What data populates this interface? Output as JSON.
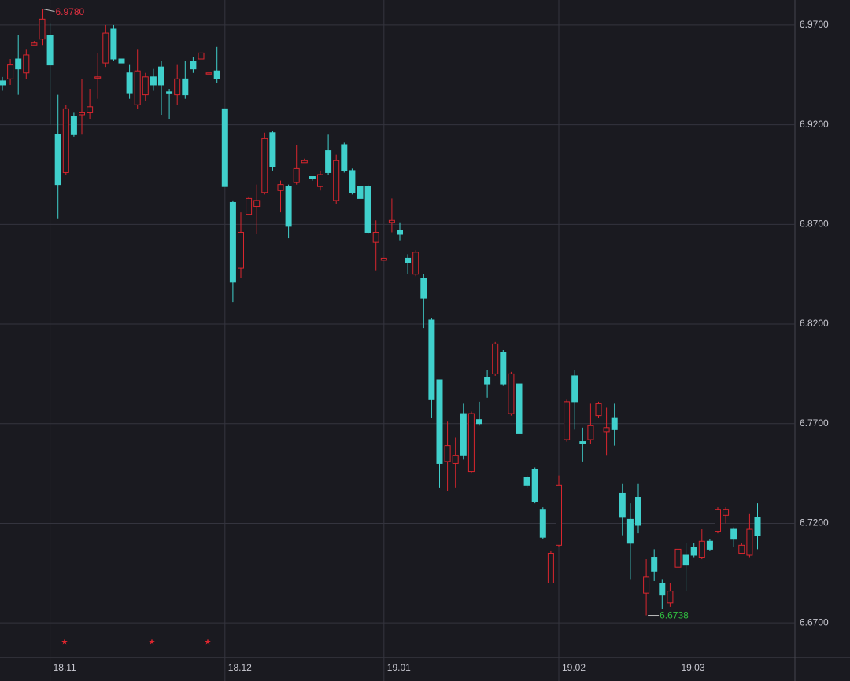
{
  "chart_data": {
    "type": "candlestick",
    "categories": [
      null,
      null,
      null,
      null,
      null,
      null,
      "18.11",
      null,
      null,
      null,
      null,
      null,
      null,
      null,
      null,
      null,
      null,
      null,
      null,
      null,
      null,
      null,
      null,
      null,
      null,
      null,
      null,
      null,
      "18.12",
      null,
      null,
      null,
      null,
      null,
      null,
      null,
      null,
      null,
      null,
      null,
      null,
      null,
      null,
      null,
      null,
      null,
      null,
      null,
      "19.01",
      null,
      null,
      null,
      null,
      null,
      null,
      null,
      null,
      null,
      null,
      null,
      null,
      null,
      null,
      null,
      null,
      null,
      null,
      null,
      null,
      null,
      "19.02",
      null,
      null,
      null,
      null,
      null,
      null,
      null,
      null,
      null,
      null,
      null,
      null,
      null,
      null,
      "19.03",
      null,
      null,
      null,
      null,
      null,
      null,
      null,
      null,
      null,
      null
    ],
    "open": [
      6.942,
      6.943,
      6.953,
      6.946,
      6.96,
      6.963,
      6.965,
      6.915,
      6.896,
      6.924,
      6.925,
      6.926,
      6.944,
      6.951,
      6.968,
      6.953,
      6.946,
      6.93,
      6.935,
      6.944,
      6.949,
      6.9365,
      6.935,
      6.943,
      6.952,
      6.953,
      6.9455,
      6.947,
      6.928,
      6.881,
      6.848,
      6.875,
      6.879,
      6.886,
      6.916,
      6.887,
      6.889,
      6.891,
      6.901,
      6.894,
      6.889,
      6.907,
      6.882,
      6.91,
      6.897,
      6.889,
      6.889,
      6.861,
      6.852,
      6.871,
      6.867,
      6.853,
      6.845,
      6.843,
      6.822,
      6.792,
      6.751,
      6.75,
      6.775,
      6.746,
      6.772,
      6.793,
      6.795,
      6.806,
      6.775,
      6.79,
      6.743,
      6.747,
      6.727,
      6.69,
      6.709,
      6.762,
      6.794,
      6.761,
      6.762,
      6.774,
      6.766,
      6.773,
      6.735,
      6.722,
      6.733,
      6.685,
      6.703,
      6.69,
      6.68,
      6.698,
      6.704,
      6.708,
      6.703,
      6.711,
      6.716,
      6.724,
      6.717,
      6.705,
      6.704,
      6.723
    ],
    "high": [
      6.944,
      6.953,
      6.965,
      6.958,
      6.962,
      6.978,
      6.971,
      6.935,
      6.93,
      6.926,
      6.943,
      6.938,
      6.956,
      6.97,
      6.97,
      6.953,
      6.95,
      6.958,
      6.946,
      6.948,
      6.952,
      6.938,
      6.95,
      6.952,
      6.954,
      6.957,
      6.946,
      6.959,
      6.928,
      6.882,
      6.876,
      6.884,
      6.89,
      6.916,
      6.917,
      6.892,
      6.89,
      6.91,
      6.903,
      6.894,
      6.897,
      6.915,
      6.905,
      6.911,
      6.898,
      6.892,
      6.89,
      6.872,
      6.853,
      6.883,
      6.871,
      6.855,
      6.857,
      6.845,
      6.823,
      6.792,
      6.771,
      6.763,
      6.78,
      6.776,
      6.781,
      6.797,
      6.811,
      6.807,
      6.796,
      6.791,
      6.744,
      6.748,
      6.728,
      6.706,
      6.744,
      6.782,
      6.797,
      6.768,
      6.78,
      6.781,
      6.778,
      6.78,
      6.74,
      6.73,
      6.74,
      6.702,
      6.707,
      6.692,
      6.69,
      6.709,
      6.71,
      6.71,
      6.717,
      6.712,
      6.728,
      6.728,
      6.718,
      6.71,
      6.725,
      6.73
    ],
    "low": [
      6.937,
      6.94,
      6.935,
      6.943,
      6.96,
      6.96,
      6.92,
      6.873,
      6.895,
      6.914,
      6.915,
      6.923,
      6.933,
      6.949,
      6.952,
      6.951,
      6.933,
      6.928,
      6.932,
      6.937,
      6.925,
      6.923,
      6.93,
      6.933,
      6.946,
      6.953,
      6.9455,
      6.941,
      6.889,
      6.831,
      6.843,
      6.875,
      6.865,
      6.885,
      6.897,
      6.876,
      6.863,
      6.89,
      6.901,
      6.892,
      6.887,
      6.895,
      6.88,
      6.896,
      6.885,
      6.881,
      6.865,
      6.847,
      6.852,
      6.866,
      6.862,
      6.845,
      6.844,
      6.818,
      6.773,
      6.738,
      6.736,
      6.738,
      6.752,
      6.745,
      6.769,
      6.783,
      6.794,
      6.789,
      6.774,
      6.748,
      6.738,
      6.73,
      6.712,
      6.69,
      6.708,
      6.761,
      6.767,
      6.751,
      6.76,
      6.773,
      6.754,
      6.759,
      6.714,
      6.692,
      6.715,
      6.6738,
      6.691,
      6.677,
      6.678,
      6.696,
      6.686,
      6.703,
      6.702,
      6.706,
      6.715,
      6.72,
      6.708,
      6.705,
      6.703,
      6.707
    ],
    "close": [
      6.94,
      6.95,
      6.948,
      6.955,
      6.961,
      6.973,
      6.95,
      6.89,
      6.928,
      6.915,
      6.926,
      6.929,
      6.944,
      6.966,
      6.953,
      6.951,
      6.936,
      6.947,
      6.944,
      6.94,
      6.94,
      6.936,
      6.943,
      6.935,
      6.948,
      6.956,
      6.946,
      6.943,
      6.889,
      6.841,
      6.866,
      6.883,
      6.882,
      6.913,
      6.899,
      6.89,
      6.869,
      6.898,
      6.902,
      6.893,
      6.895,
      6.896,
      6.902,
      6.897,
      6.886,
      6.883,
      6.866,
      6.866,
      6.853,
      6.872,
      6.865,
      6.851,
      6.856,
      6.833,
      6.782,
      6.75,
      6.759,
      6.754,
      6.754,
      6.775,
      6.77,
      6.79,
      6.81,
      6.79,
      6.795,
      6.765,
      6.739,
      6.731,
      6.713,
      6.705,
      6.739,
      6.781,
      6.781,
      6.76,
      6.769,
      6.78,
      6.768,
      6.767,
      6.723,
      6.71,
      6.719,
      6.693,
      6.696,
      6.684,
      6.686,
      6.707,
      6.699,
      6.704,
      6.711,
      6.707,
      6.727,
      6.727,
      6.712,
      6.709,
      6.717,
      6.714
    ],
    "up_color": "#d9262e",
    "down_color": "#40d0cc",
    "max_label": "6.9780",
    "min_label": "6.6738",
    "ylim": [
      6.6527,
      6.9826
    ],
    "yticks": [
      {
        "value": 6.97,
        "label": "6.9700"
      },
      {
        "value": 6.92,
        "label": "6.9200"
      },
      {
        "value": 6.87,
        "label": "6.8700"
      },
      {
        "value": 6.82,
        "label": "6.8200"
      },
      {
        "value": 6.77,
        "label": "6.7700"
      },
      {
        "value": 6.72,
        "label": "6.7200"
      },
      {
        "value": 6.67,
        "label": "6.6700"
      }
    ],
    "grid": true
  }
}
